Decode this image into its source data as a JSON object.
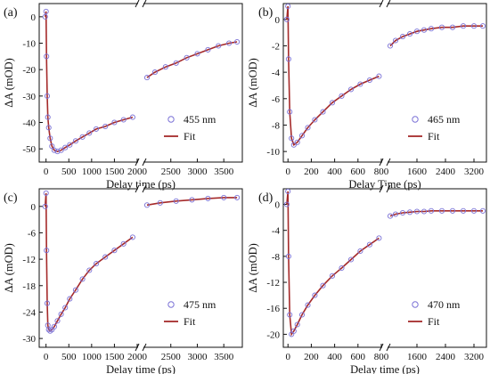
{
  "chart_data": [
    {
      "panel": "(a)",
      "type": "scatter",
      "xlabel": "Delay time (ps)",
      "ylabel": "ΔA (mOD)",
      "y_ticks": [
        0,
        -10,
        -20,
        -30,
        -40,
        -50
      ],
      "ylim": [
        -55,
        5
      ],
      "segment1": {
        "xlim": [
          -150,
          2000
        ],
        "ticks": [
          0,
          500,
          1000,
          1500,
          2000
        ]
      },
      "segment2": {
        "xlim": [
          2000,
          3850
        ],
        "ticks": [
          2500,
          3000,
          3500
        ]
      },
      "legend": [
        "455 nm",
        "Fit"
      ],
      "series": [
        {
          "name": "455 nm",
          "x": [
            -20,
            0,
            10,
            25,
            40,
            60,
            90,
            130,
            180,
            250,
            330,
            420,
            520,
            650,
            800,
            950,
            1100,
            1300,
            1500,
            1700,
            1900,
            2050,
            2200,
            2400,
            2600,
            2800,
            3000,
            3200,
            3400,
            3600,
            3750
          ],
          "y": [
            0,
            2,
            -15,
            -30,
            -38,
            -42,
            -46,
            -49,
            -50.5,
            -51,
            -50.5,
            -49.5,
            -48.5,
            -47,
            -45.5,
            -44,
            -42.5,
            -41.5,
            -40,
            -39,
            -38,
            -23,
            -21,
            -19,
            -17.5,
            -15.5,
            -14,
            -12.5,
            -11,
            -10,
            -9.5
          ]
        },
        {
          "name": "Fit",
          "x": [
            -20,
            0,
            10,
            25,
            40,
            60,
            90,
            130,
            180,
            250,
            330,
            420,
            520,
            650,
            800,
            950,
            1100,
            1300,
            1500,
            1700,
            1900,
            2050,
            2200,
            2400,
            2600,
            2800,
            3000,
            3200,
            3400,
            3600,
            3750
          ],
          "y": [
            0,
            2,
            -15,
            -30,
            -38,
            -42,
            -46,
            -49,
            -50.5,
            -51,
            -50.5,
            -49.5,
            -48.5,
            -47,
            -45.5,
            -44,
            -42.5,
            -41.5,
            -40,
            -39,
            -38,
            -23,
            -21,
            -19,
            -17.5,
            -15.5,
            -14,
            -12.5,
            -11,
            -10,
            -9.5
          ]
        }
      ]
    },
    {
      "panel": "(b)",
      "type": "scatter",
      "xlabel": "Delay Time (ps)",
      "ylabel": "ΔA (mOD)",
      "y_ticks": [
        0,
        -2,
        -4,
        -6,
        -8,
        -10
      ],
      "ylim": [
        -10.8,
        1.2
      ],
      "segment1": {
        "xlim": [
          -40,
          800
        ],
        "ticks": [
          0,
          200,
          400,
          600,
          800
        ]
      },
      "segment2": {
        "xlim": [
          800,
          3550
        ],
        "ticks": [
          1600,
          2400,
          3200
        ]
      },
      "legend": [
        "465 nm",
        "Fit"
      ],
      "series": [
        {
          "name": "465 nm",
          "x": [
            -10,
            0,
            5,
            15,
            30,
            50,
            80,
            120,
            170,
            230,
            300,
            380,
            460,
            540,
            620,
            700,
            780,
            850,
            1000,
            1200,
            1400,
            1600,
            1800,
            2000,
            2300,
            2600,
            2900,
            3200,
            3450
          ],
          "y": [
            0,
            1,
            -3,
            -7,
            -9,
            -9.5,
            -9.3,
            -8.8,
            -8.2,
            -7.6,
            -7,
            -6.3,
            -5.8,
            -5.3,
            -4.9,
            -4.6,
            -4.3,
            -2,
            -1.6,
            -1.3,
            -1.1,
            -0.9,
            -0.8,
            -0.7,
            -0.6,
            -0.6,
            -0.5,
            -0.5,
            -0.5
          ]
        },
        {
          "name": "Fit",
          "x": [
            -10,
            0,
            5,
            15,
            30,
            50,
            80,
            120,
            170,
            230,
            300,
            380,
            460,
            540,
            620,
            700,
            780,
            850,
            1000,
            1200,
            1400,
            1600,
            1800,
            2000,
            2300,
            2600,
            2900,
            3200,
            3450
          ],
          "y": [
            0,
            1,
            -3,
            -7,
            -9,
            -9.5,
            -9.3,
            -8.8,
            -8.2,
            -7.6,
            -7,
            -6.3,
            -5.8,
            -5.3,
            -4.9,
            -4.6,
            -4.3,
            -2,
            -1.6,
            -1.3,
            -1.1,
            -0.9,
            -0.8,
            -0.7,
            -0.6,
            -0.6,
            -0.5,
            -0.5,
            -0.5
          ]
        }
      ]
    },
    {
      "panel": "(c)",
      "type": "scatter",
      "xlabel": "Delay time (ps)",
      "ylabel": "ΔA (mOD)",
      "y_ticks": [
        0,
        -6,
        -12,
        -18,
        -24,
        -30
      ],
      "ylim": [
        -32,
        4
      ],
      "segment1": {
        "xlim": [
          -150,
          2000
        ],
        "ticks": [
          0,
          500,
          1000,
          1500,
          2000
        ]
      },
      "segment2": {
        "xlim": [
          2000,
          3850
        ],
        "ticks": [
          2500,
          3000,
          3500
        ]
      },
      "legend": [
        "475 nm",
        "Fit"
      ],
      "series": [
        {
          "name": "475 nm",
          "x": [
            -20,
            0,
            10,
            25,
            40,
            60,
            90,
            130,
            180,
            250,
            330,
            420,
            520,
            650,
            800,
            950,
            1100,
            1300,
            1500,
            1700,
            1900,
            2050,
            2300,
            2600,
            2900,
            3200,
            3500,
            3750
          ],
          "y": [
            0,
            3,
            -10,
            -22,
            -27,
            -28,
            -28.3,
            -28,
            -27.3,
            -26,
            -24.5,
            -23,
            -21,
            -19,
            -16.5,
            -14.5,
            -13,
            -11.5,
            -10,
            -8.5,
            -7,
            0.3,
            0.8,
            1.2,
            1.5,
            1.8,
            2,
            2
          ]
        },
        {
          "name": "Fit",
          "x": [
            -20,
            0,
            10,
            25,
            40,
            60,
            90,
            130,
            180,
            250,
            330,
            420,
            520,
            650,
            800,
            950,
            1100,
            1300,
            1500,
            1700,
            1900,
            2050,
            2300,
            2600,
            2900,
            3200,
            3500,
            3750
          ],
          "y": [
            0,
            3,
            -10,
            -22,
            -27,
            -28,
            -28.3,
            -28,
            -27.3,
            -26,
            -24.5,
            -23,
            -21,
            -19,
            -16.5,
            -14.5,
            -13,
            -11.5,
            -10,
            -8.5,
            -7,
            0.3,
            0.8,
            1.2,
            1.5,
            1.8,
            2,
            2
          ]
        }
      ]
    },
    {
      "panel": "(d)",
      "type": "scatter",
      "xlabel": "Delay time (ps)",
      "ylabel": "ΔA (mOD)",
      "y_ticks": [
        0,
        -4,
        -8,
        -12,
        -16,
        -20
      ],
      "ylim": [
        -22,
        2.4
      ],
      "segment1": {
        "xlim": [
          -40,
          800
        ],
        "ticks": [
          0,
          200,
          400,
          600,
          800
        ]
      },
      "segment2": {
        "xlim": [
          800,
          3550
        ],
        "ticks": [
          1600,
          2400,
          3200
        ]
      },
      "legend": [
        "470 nm",
        "Fit"
      ],
      "series": [
        {
          "name": "470 nm",
          "x": [
            -10,
            0,
            5,
            15,
            30,
            50,
            80,
            120,
            170,
            230,
            300,
            380,
            460,
            540,
            620,
            700,
            780,
            850,
            1000,
            1200,
            1400,
            1600,
            1800,
            2000,
            2300,
            2600,
            2900,
            3200,
            3450
          ],
          "y": [
            0,
            2,
            -8,
            -17,
            -20,
            -19.5,
            -18.5,
            -17,
            -15.5,
            -14,
            -12.5,
            -11,
            -9.8,
            -8.5,
            -7.2,
            -6.2,
            -5.2,
            -1.8,
            -1.5,
            -1.3,
            -1.2,
            -1.1,
            -1.1,
            -1.0,
            -1.0,
            -1.0,
            -1.0,
            -1.0,
            -1.0
          ]
        },
        {
          "name": "Fit",
          "x": [
            -10,
            0,
            5,
            15,
            30,
            50,
            80,
            120,
            170,
            230,
            300,
            380,
            460,
            540,
            620,
            700,
            780,
            850,
            1000,
            1200,
            1400,
            1600,
            1800,
            2000,
            2300,
            2600,
            2900,
            3200,
            3450
          ],
          "y": [
            0,
            2,
            -8,
            -17,
            -20,
            -19.5,
            -18.5,
            -17,
            -15.5,
            -14,
            -12.5,
            -11,
            -9.8,
            -8.5,
            -7.2,
            -6.2,
            -5.2,
            -1.8,
            -1.5,
            -1.3,
            -1.2,
            -1.1,
            -1.1,
            -1.0,
            -1.0,
            -1.0,
            -1.0,
            -1.0,
            -1.0
          ]
        }
      ]
    }
  ],
  "colors": {
    "data_marker": "#7b72d6",
    "fit_line": "#a52a2a",
    "axis": "#111111"
  }
}
